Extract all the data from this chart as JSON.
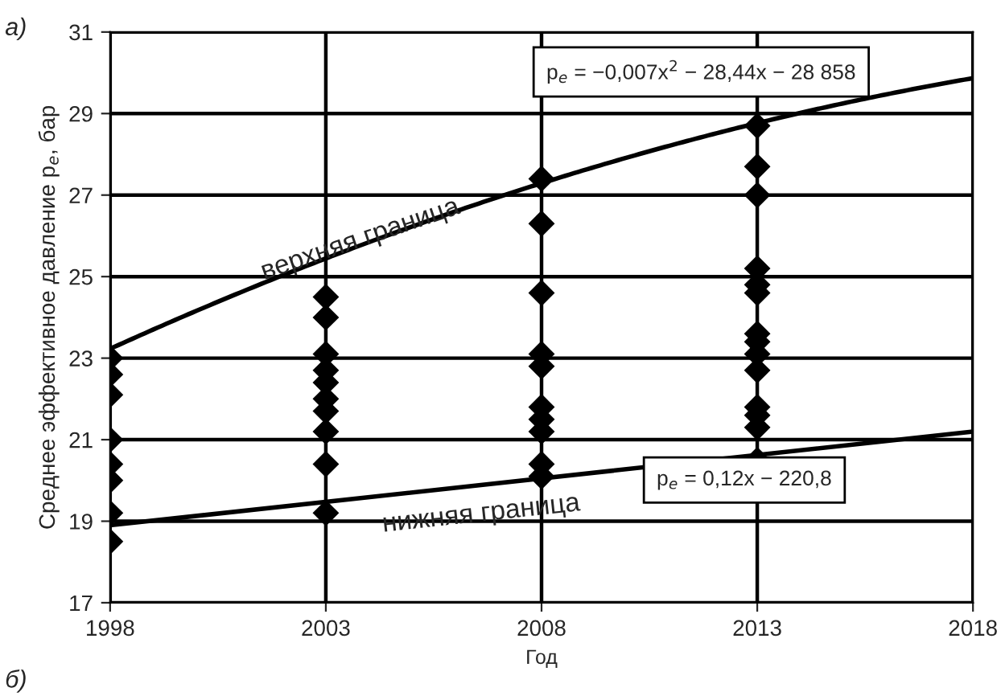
{
  "chart_data": {
    "type": "scatter",
    "xlabel": "Год",
    "ylabel": "Среднее эффективное давление p$_{e}$, бар",
    "xlim": [
      1998,
      2018
    ],
    "xticks": [
      1998,
      2003,
      2008,
      2013,
      2018
    ],
    "ylim": [
      17,
      31
    ],
    "yticks": [
      17,
      19,
      21,
      23,
      25,
      27,
      29,
      31
    ],
    "grid": true,
    "series": [
      {
        "marker": "diamond",
        "color": "#000000",
        "x": [
          1998,
          1998,
          1998,
          1998,
          1998,
          1998,
          1998,
          1998,
          2003,
          2003,
          2003,
          2003,
          2003,
          2003,
          2003,
          2003,
          2003,
          2003,
          2008,
          2008,
          2008,
          2008,
          2008,
          2008,
          2008,
          2008,
          2008,
          2008,
          2013,
          2013,
          2013,
          2013,
          2013,
          2013,
          2013,
          2013,
          2013,
          2013,
          2013,
          2013,
          2013,
          2013
        ],
        "values": [
          23.0,
          22.6,
          22.1,
          21.0,
          20.4,
          20.0,
          19.2,
          18.5,
          24.5,
          24.0,
          23.1,
          22.7,
          22.4,
          22.0,
          21.7,
          21.2,
          20.4,
          19.2,
          27.4,
          26.3,
          24.6,
          23.1,
          22.8,
          21.8,
          21.5,
          21.2,
          20.4,
          20.1,
          28.7,
          27.7,
          27.0,
          25.2,
          24.8,
          24.6,
          23.6,
          23.4,
          23.1,
          22.7,
          21.8,
          21.6,
          21.3,
          20.5
        ]
      },
      {
        "type": "line",
        "color": "#000000",
        "x": [
          1998,
          2003,
          2008,
          2013,
          2018
        ],
        "values": [
          23.2,
          25.5,
          27.3,
          28.7,
          29.9
        ]
      },
      {
        "type": "line",
        "color": "#000000",
        "x": [
          1998,
          2018
        ],
        "values": [
          18.9,
          21.2
        ]
      }
    ],
    "annotations": [
      "а)",
      "p$_{e}$ = −0,007x$^{2}$ − 28,44x − 28 858",
      "p$_{e}$ = 0,12x − 220,8",
      "б)",
      {
        "text": "верхняя граница",
        "x": 2003.8,
        "y": 25.9
      },
      "нижняя граница"
    ]
  }
}
